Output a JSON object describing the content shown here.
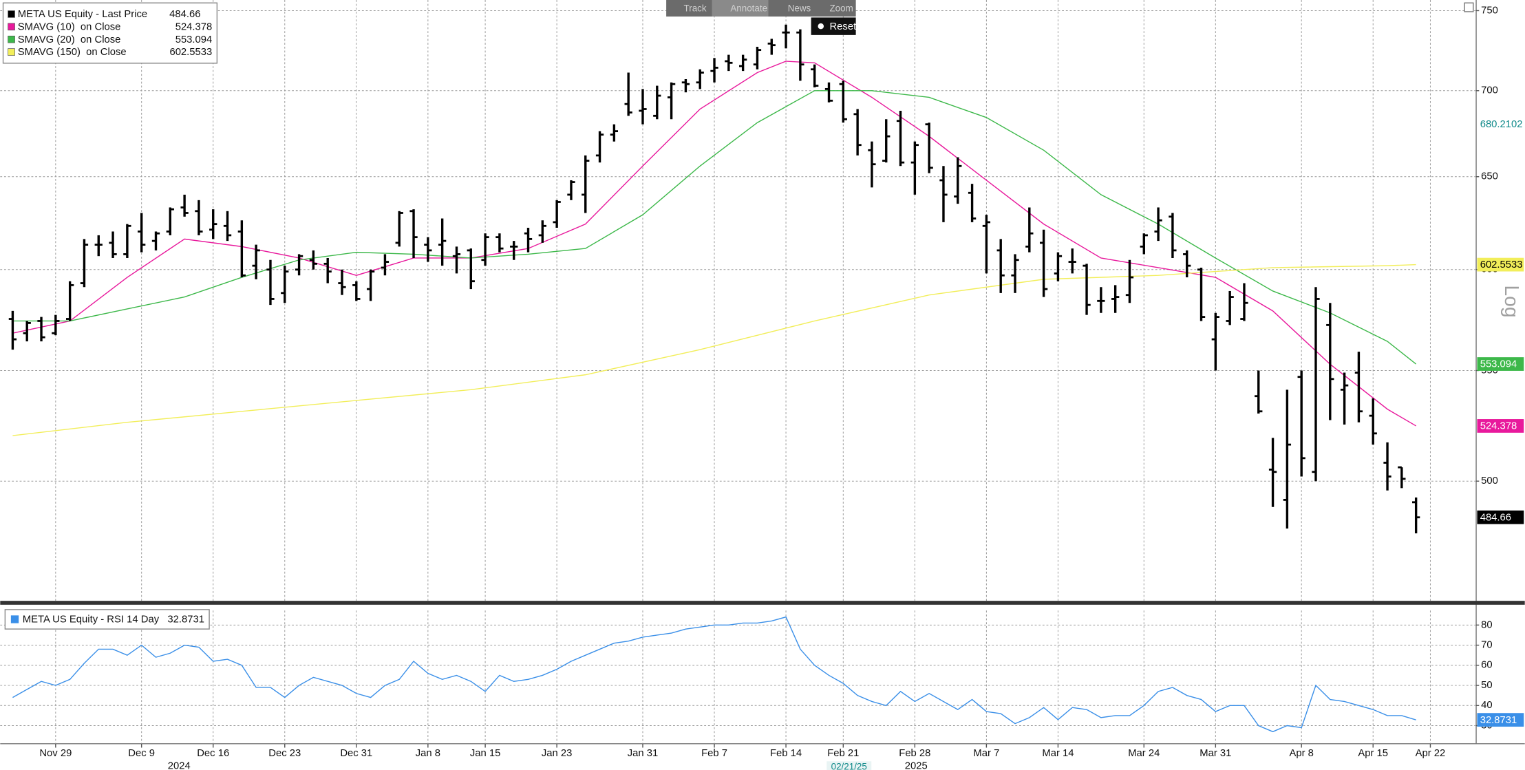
{
  "chart_data": [
    {
      "type": "ohlc",
      "log": true,
      "scale_label": "Log",
      "grid": true,
      "toolbar": [
        "Track",
        "Annotate",
        "News",
        "Zoom"
      ],
      "reset": "Reset",
      "xlim": [
        -0.87,
        102.2
      ],
      "ylim": [
        451,
        755
      ],
      "yticks": [
        500,
        550,
        600,
        650,
        700,
        750
      ],
      "cursor_value": 680.2102,
      "series": [
        {
          "name": "META US Equity - Last Price",
          "color": "#000000",
          "open": [
            575,
            568,
            574,
            568,
            575,
            593,
            613,
            614,
            608,
            620,
            615,
            620,
            633,
            631,
            621,
            623,
            620,
            602,
            600,
            588,
            600,
            605,
            603,
            593,
            592,
            590,
            601,
            614,
            631,
            613,
            613,
            607,
            610,
            605,
            617,
            612,
            619,
            618,
            625,
            640,
            640,
            662,
            674,
            692,
            688,
            685,
            696,
            705,
            705,
            712,
            718,
            715,
            716,
            729,
            736,
            736,
            713,
            701,
            704,
            686,
            665,
            659,
            682,
            658,
            680,
            648,
            639,
            641,
            623,
            610,
            597,
            612,
            614,
            598,
            604,
            602,
            584,
            585,
            587,
            612,
            620,
            628,
            608,
            600,
            565,
            574,
            575,
            538,
            505,
            492,
            547,
            504,
            572,
            541,
            549,
            529,
            508,
            506,
            491
          ],
          "high": [
            579,
            574,
            576,
            577,
            594,
            616,
            618,
            620,
            624,
            630,
            620,
            633,
            640,
            637,
            632,
            631,
            626,
            613,
            605,
            602,
            608,
            610,
            606,
            600,
            594,
            600,
            608,
            631,
            632,
            617,
            627,
            612,
            611,
            619,
            619,
            615,
            622,
            626,
            637,
            648,
            662,
            676,
            680,
            711,
            701,
            703,
            705,
            707,
            713,
            720,
            722,
            722,
            727,
            732,
            741,
            738,
            716,
            705,
            706,
            689,
            670,
            683,
            688,
            670,
            681,
            656,
            661,
            646,
            629,
            616,
            608,
            633,
            621,
            609,
            611,
            603,
            591,
            592,
            605,
            619,
            633,
            630,
            610,
            601,
            578,
            589,
            593,
            550,
            519,
            541,
            550,
            591,
            583,
            549,
            559,
            537,
            517,
            506,
            493
          ],
          "low": [
            560,
            564,
            564,
            567,
            574,
            591,
            607,
            606,
            606,
            609,
            610,
            618,
            628,
            618,
            616,
            615,
            596,
            595,
            582,
            583,
            597,
            600,
            593,
            587,
            584,
            584,
            597,
            612,
            606,
            604,
            602,
            598,
            590,
            602,
            609,
            605,
            609,
            614,
            622,
            637,
            630,
            658,
            670,
            685,
            680,
            683,
            683,
            699,
            701,
            705,
            712,
            712,
            713,
            722,
            726,
            706,
            702,
            693,
            681,
            662,
            644,
            658,
            656,
            640,
            652,
            625,
            635,
            625,
            598,
            588,
            588,
            609,
            586,
            594,
            598,
            577,
            578,
            578,
            583,
            608,
            615,
            606,
            596,
            574,
            550,
            572,
            574,
            530,
            489,
            480,
            502,
            500,
            527,
            525,
            526,
            516,
            496,
            497,
            478
          ],
          "close": [
            565,
            573,
            566,
            574,
            592,
            613,
            613,
            608,
            623,
            613,
            619,
            632,
            630,
            620,
            624,
            618,
            597,
            610,
            585,
            599,
            607,
            603,
            599,
            591,
            585,
            599,
            604,
            630,
            617,
            610,
            615,
            608,
            594,
            617,
            611,
            612,
            616,
            623,
            636,
            647,
            659,
            674,
            676,
            687,
            689,
            697,
            704,
            704,
            711,
            714,
            717,
            719,
            725,
            728,
            736,
            716,
            703,
            694,
            683,
            668,
            657,
            673,
            658,
            668,
            655,
            640,
            656,
            627,
            625,
            597,
            605,
            619,
            590,
            607,
            604,
            582,
            584,
            586,
            596,
            618,
            626,
            610,
            602,
            576,
            576,
            586,
            583,
            531,
            504,
            516,
            510,
            585,
            546,
            543,
            531,
            521,
            502,
            501,
            484.66
          ]
        }
      ],
      "lines": [
        {
          "name": "SMAVG (10)  on Close",
          "color": "#e8199c",
          "x": [
            0,
            4,
            8,
            12,
            16,
            20,
            24,
            28,
            32,
            36,
            40,
            44,
            48,
            52,
            54,
            56,
            60,
            64,
            68,
            72,
            76,
            80,
            84,
            88,
            92,
            96,
            98
          ],
          "values": [
            568,
            574,
            596,
            616,
            612,
            606,
            597,
            606,
            606,
            611,
            624,
            656,
            689,
            711,
            718,
            717,
            696,
            673,
            648,
            624,
            606,
            601,
            596,
            579,
            553,
            532,
            524.378
          ]
        },
        {
          "name": "SMAVG (20)  on Close",
          "color": "#3db84a",
          "x": [
            0,
            4,
            8,
            12,
            16,
            20,
            24,
            28,
            32,
            36,
            40,
            44,
            48,
            52,
            56,
            60,
            64,
            68,
            72,
            76,
            80,
            84,
            88,
            92,
            96,
            98
          ],
          "values": [
            574,
            574,
            580,
            586,
            596,
            605,
            609,
            608,
            606,
            608,
            611,
            629,
            656,
            681,
            700,
            700,
            696,
            684,
            665,
            640,
            624,
            606,
            589,
            578,
            564,
            553.094
          ]
        },
        {
          "name": "SMAVG (150)  on Close",
          "color": "#f2ee5a",
          "x": [
            0,
            8,
            16,
            24,
            32,
            40,
            48,
            56,
            64,
            72,
            80,
            88,
            96,
            98
          ],
          "values": [
            520,
            526,
            531,
            536,
            541,
            548,
            560,
            574,
            587,
            595,
            597,
            601,
            602,
            602.5533
          ]
        }
      ]
    },
    {
      "type": "line",
      "grid": true,
      "xlim": [
        -0.87,
        102.2
      ],
      "ylim": [
        21,
        87.2
      ],
      "yticks": [
        30,
        40,
        50,
        60,
        70,
        80
      ],
      "cursor_date": "02/21/25",
      "years": [
        "2024",
        "2025"
      ],
      "xticks": [
        {
          "value": 3,
          "label": "Nov 29"
        },
        {
          "value": 9,
          "label": "Dec 9"
        },
        {
          "value": 14,
          "label": "Dec 16"
        },
        {
          "value": 19,
          "label": "Dec 23"
        },
        {
          "value": 24,
          "label": "Dec 31"
        },
        {
          "value": 29,
          "label": "Jan 8"
        },
        {
          "value": 33,
          "label": "Jan 15"
        },
        {
          "value": 38,
          "label": "Jan 23"
        },
        {
          "value": 44,
          "label": "Jan 31"
        },
        {
          "value": 49,
          "label": "Feb 7"
        },
        {
          "value": 54,
          "label": "Feb 14"
        },
        {
          "value": 58,
          "label": "Feb 21"
        },
        {
          "value": 63,
          "label": "Feb 28"
        },
        {
          "value": 68,
          "label": "Mar 7"
        },
        {
          "value": 73,
          "label": "Mar 14"
        },
        {
          "value": 79,
          "label": "Mar 24"
        },
        {
          "value": 84,
          "label": "Mar 31"
        },
        {
          "value": 90,
          "label": "Apr 8"
        },
        {
          "value": 95,
          "label": "Apr 15"
        },
        {
          "value": 99,
          "label": "Apr 22"
        }
      ],
      "series": [
        {
          "name": "META US Equity - RSI 14 Day",
          "color": "#3a8fe8",
          "values": [
            44,
            48,
            52,
            50,
            53,
            61,
            68,
            68,
            65,
            70,
            64,
            66,
            70,
            69,
            62,
            63,
            60,
            49,
            49,
            44,
            50,
            54,
            52,
            50,
            46,
            44,
            50,
            53,
            62,
            56,
            53,
            55,
            52,
            47,
            55,
            52,
            53,
            55,
            58,
            62,
            65,
            68,
            71,
            72,
            74,
            75,
            76,
            78,
            79,
            80,
            80,
            81,
            81,
            82,
            84,
            68,
            60,
            55,
            51,
            45,
            42,
            40,
            47,
            42,
            46,
            42,
            38,
            43,
            37,
            36,
            31,
            34,
            39,
            33,
            39,
            38,
            34,
            35,
            35,
            40,
            47,
            49,
            45,
            43,
            37,
            40,
            40,
            30,
            27,
            30,
            29,
            50,
            43,
            42,
            40,
            38,
            35,
            35,
            32.8731
          ]
        }
      ]
    }
  ]
}
